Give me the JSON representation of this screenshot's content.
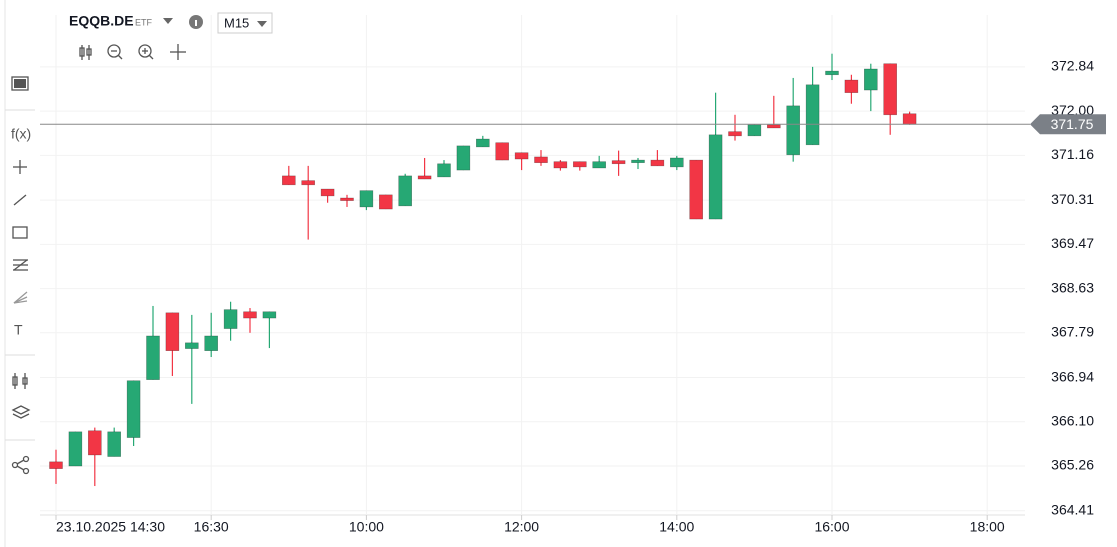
{
  "header": {
    "symbol": "EQQB.DE",
    "asset_type": "ETF",
    "timeframe": "M15"
  },
  "toolbar": {
    "function_label": "f(x)",
    "text_tool": "T"
  },
  "chart_data": {
    "type": "candlestick",
    "categories": [
      "23.10.2025 14:30",
      null,
      null,
      null,
      null,
      null,
      null,
      null,
      "16:30",
      null,
      null,
      null,
      null,
      null,
      null,
      null,
      "10:00",
      null,
      null,
      null,
      null,
      null,
      null,
      null,
      "12:00",
      null,
      null,
      null,
      null,
      null,
      null,
      null,
      "14:00",
      null,
      null,
      null,
      null,
      null,
      null,
      null,
      "16:00",
      null,
      null,
      null,
      null,
      null,
      null,
      null,
      "18:00"
    ],
    "open": [
      365.34,
      365.26,
      365.93,
      365.44,
      365.8,
      366.9,
      368.17,
      367.49,
      367.45,
      367.87,
      368.19,
      368.07,
      370.77,
      370.68,
      370.52,
      370.35,
      370.18,
      370.41,
      370.2,
      370.77,
      370.75,
      370.88,
      371.32,
      371.4,
      371.21,
      371.13,
      371.04,
      371.04,
      370.92,
      371.06,
      371.02,
      371.07,
      370.94,
      371.07,
      369.95,
      371.61,
      371.53,
      371.74,
      371.17,
      371.36,
      372.69,
      372.59,
      372.4,
      372.9,
      371.95,
      null,
      null,
      null,
      null
    ],
    "high": [
      365.57,
      365.91,
      365.99,
      365.99,
      366.88,
      368.3,
      368.17,
      368.13,
      368.17,
      368.38,
      368.26,
      368.19,
      370.96,
      370.96,
      370.52,
      370.41,
      370.49,
      370.41,
      370.81,
      371.11,
      371.07,
      371.34,
      371.53,
      371.4,
      371.21,
      371.26,
      371.07,
      371.04,
      371.15,
      371.25,
      371.11,
      371.26,
      371.15,
      371.07,
      372.35,
      371.93,
      371.74,
      372.29,
      372.63,
      372.84,
      373.09,
      372.69,
      372.9,
      372.9,
      371.99,
      null,
      null,
      null,
      null
    ],
    "low": [
      364.92,
      365.26,
      364.88,
      365.44,
      365.64,
      366.9,
      366.97,
      366.44,
      367.33,
      367.64,
      367.79,
      367.5,
      370.6,
      369.56,
      370.26,
      370.18,
      370.12,
      370.14,
      370.2,
      370.71,
      370.75,
      370.88,
      371.32,
      371.07,
      370.88,
      370.96,
      370.87,
      370.87,
      370.92,
      370.77,
      370.9,
      370.96,
      370.88,
      369.95,
      369.95,
      371.44,
      371.53,
      371.68,
      371.04,
      371.36,
      372.59,
      372.14,
      372.0,
      371.55,
      371.74,
      null,
      null,
      null,
      null
    ],
    "close": [
      365.21,
      365.91,
      365.47,
      365.91,
      366.88,
      367.73,
      367.45,
      367.6,
      367.73,
      368.23,
      368.07,
      368.19,
      370.6,
      370.6,
      370.39,
      370.3,
      370.49,
      370.14,
      370.77,
      370.71,
      371.0,
      371.34,
      371.47,
      371.07,
      371.09,
      371.02,
      370.92,
      370.94,
      371.04,
      371.0,
      371.07,
      370.96,
      371.11,
      369.95,
      371.55,
      371.53,
      371.74,
      371.68,
      372.1,
      372.5,
      372.76,
      372.35,
      372.8,
      371.93,
      371.75,
      null,
      null,
      null,
      null
    ],
    "up_color": "#26a874",
    "down_color": "#f23645",
    "last_price": 371.75,
    "ylim": [
      364.33,
      373.92
    ],
    "yticks": [
      372.84,
      {
        "value": 372.0,
        "label": "372.00"
      },
      371.16,
      370.31,
      369.47,
      368.63,
      367.79,
      366.94,
      {
        "value": 366.1,
        "label": "366.10"
      },
      365.26,
      364.41
    ],
    "grid": true
  }
}
